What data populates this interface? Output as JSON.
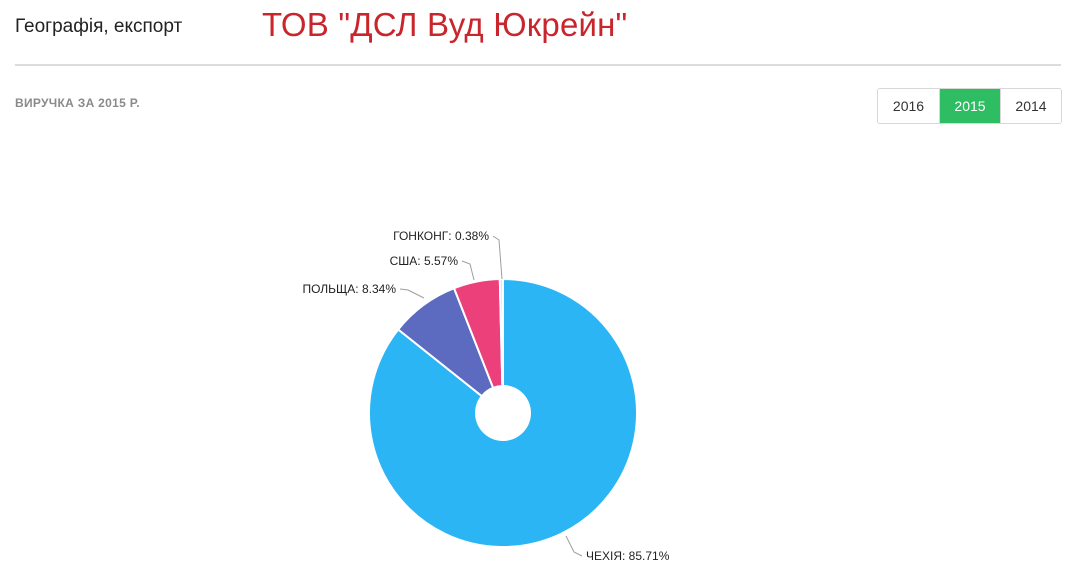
{
  "header": {
    "section_title": "Географія, експорт",
    "company_name": "ТОВ \"ДСЛ Вуд Юкрейн\""
  },
  "chart_subtitle": "ВИРУЧКА ЗА 2015 Р.",
  "year_tabs": [
    {
      "label": "2016",
      "active": false
    },
    {
      "label": "2015",
      "active": true
    },
    {
      "label": "2014",
      "active": false
    }
  ],
  "colors": {
    "accent": "#2ebd63",
    "company": "#c8262c"
  },
  "chart_data": {
    "type": "pie",
    "donut": true,
    "slices": [
      {
        "label": "ЧЕХІЯ",
        "value": 85.71,
        "display": "ЧЕХІЯ: 85.71%",
        "color": "#2bb5f5"
      },
      {
        "label": "ПОЛЬЩА",
        "value": 8.34,
        "display": "ПОЛЬЩА: 8.34%",
        "color": "#5c6bc0"
      },
      {
        "label": "США",
        "value": 5.57,
        "display": "США: 5.57%",
        "color": "#ec407a"
      },
      {
        "label": "ГОНКОНГ",
        "value": 0.38,
        "display": "ГОНКОНГ: 0.38%",
        "color": "#e7e1e4"
      }
    ]
  }
}
